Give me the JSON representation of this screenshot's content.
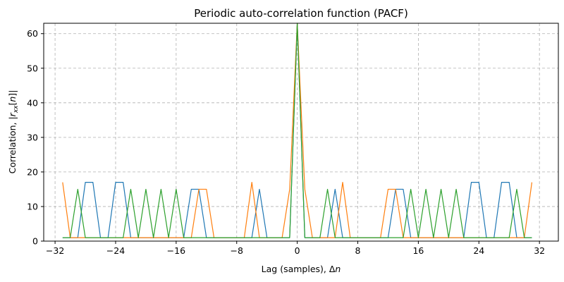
{
  "chart_data": {
    "type": "line",
    "title": "Periodic auto-correlation function (PACF)",
    "xlabel": "Lag (samples), Δ",
    "xlabel_var": "n",
    "ylabel": "Correlation, |",
    "ylabel_var": "r",
    "ylabel_sub": "xx",
    "ylabel_tail": "[",
    "ylabel_var2": "n",
    "ylabel_end": "]|",
    "xlim": [
      -33.5,
      34.5
    ],
    "ylim": [
      0,
      63
    ],
    "xticks": [
      -32,
      -24,
      -16,
      -8,
      0,
      8,
      16,
      24,
      32
    ],
    "xtick_labels": [
      "−32",
      "−24",
      "−16",
      "−8",
      "0",
      "8",
      "16",
      "24",
      "32"
    ],
    "yticks": [
      0,
      10,
      20,
      30,
      40,
      50,
      60
    ],
    "ytick_labels": [
      "0",
      "10",
      "20",
      "30",
      "40",
      "50",
      "60"
    ],
    "grid": true,
    "x": [
      -31,
      -30,
      -29,
      -28,
      -27,
      -26,
      -25,
      -24,
      -23,
      -22,
      -21,
      -20,
      -19,
      -18,
      -17,
      -16,
      -15,
      -14,
      -13,
      -12,
      -11,
      -10,
      -9,
      -8,
      -7,
      -6,
      -5,
      -4,
      -3,
      -2,
      -1,
      0,
      1,
      2,
      3,
      4,
      5,
      6,
      7,
      8,
      9,
      10,
      11,
      12,
      13,
      14,
      15,
      16,
      17,
      18,
      19,
      20,
      21,
      22,
      23,
      24,
      25,
      26,
      27,
      28,
      29,
      30,
      31
    ],
    "series": [
      {
        "color": "#1f77b4",
        "values": [
          1,
          1,
          1,
          17,
          17,
          1,
          1,
          17,
          17,
          1,
          1,
          1,
          1,
          1,
          1,
          1,
          1,
          15,
          15,
          1,
          1,
          1,
          1,
          1,
          1,
          1,
          15,
          1,
          1,
          1,
          1,
          63,
          1,
          1,
          1,
          1,
          15,
          1,
          1,
          1,
          1,
          1,
          1,
          1,
          15,
          15,
          1,
          1,
          1,
          1,
          1,
          1,
          1,
          1,
          17,
          17,
          1,
          1,
          17,
          17,
          1,
          1,
          1
        ]
      },
      {
        "color": "#ff7f0e",
        "values": [
          17,
          1,
          1,
          1,
          1,
          1,
          1,
          1,
          1,
          1,
          1,
          1,
          1,
          1,
          1,
          1,
          1,
          1,
          15,
          15,
          1,
          1,
          1,
          1,
          1,
          17,
          1,
          1,
          1,
          1,
          15,
          63,
          15,
          1,
          1,
          1,
          1,
          17,
          1,
          1,
          1,
          1,
          1,
          15,
          15,
          1,
          1,
          1,
          1,
          1,
          1,
          1,
          1,
          1,
          1,
          1,
          1,
          1,
          1,
          1,
          1,
          1,
          17
        ]
      },
      {
        "color": "#2ca02c",
        "values": [
          1,
          1,
          15,
          1,
          1,
          1,
          1,
          1,
          1,
          15,
          1,
          15,
          1,
          15,
          1,
          15,
          1,
          1,
          1,
          1,
          1,
          1,
          1,
          1,
          1,
          1,
          1,
          1,
          1,
          1,
          1,
          63,
          1,
          1,
          1,
          15,
          1,
          1,
          1,
          1,
          1,
          1,
          1,
          1,
          1,
          1,
          15,
          1,
          15,
          1,
          15,
          1,
          15,
          1,
          1,
          1,
          1,
          1,
          1,
          1,
          15,
          1,
          1
        ]
      }
    ]
  }
}
